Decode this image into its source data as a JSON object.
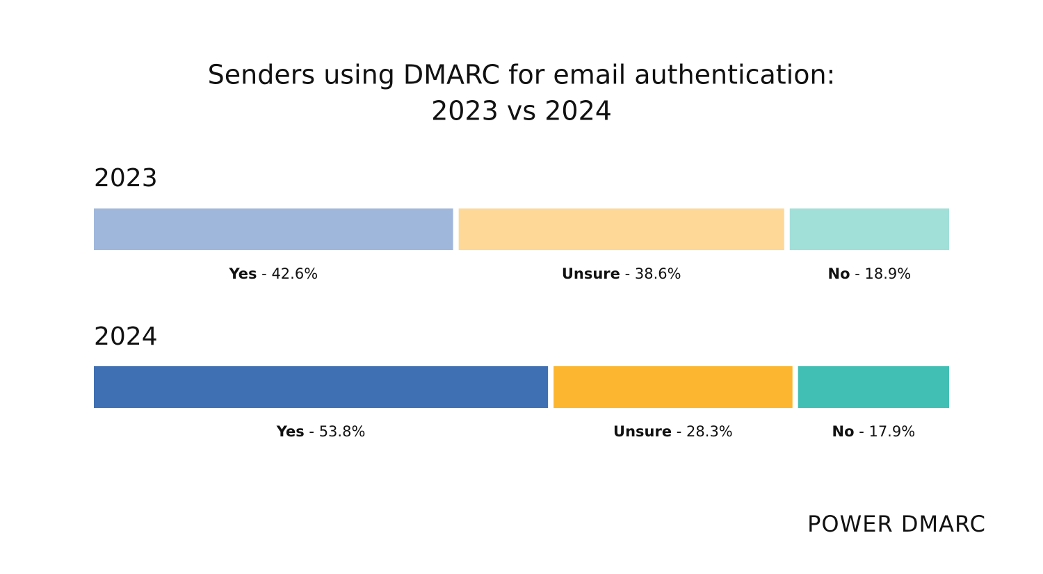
{
  "chart_data": {
    "type": "stacked_bar_horizontal",
    "title": [
      "Senders using DMARC for email authentication:",
      "2023 vs 2024"
    ],
    "categories": [
      "2023",
      "2024"
    ],
    "separator": " - ",
    "series": [
      {
        "name": "Yes",
        "colors": [
          "#a0b7dc",
          "#3f70b3"
        ],
        "values": [
          42.6,
          53.8
        ],
        "value_labels": [
          "42.6%",
          "53.8%"
        ]
      },
      {
        "name": "Unsure",
        "colors": [
          "#fdd897",
          "#fdb62f"
        ],
        "values": [
          38.6,
          28.3
        ],
        "value_labels": [
          "38.6%",
          "28.3%"
        ]
      },
      {
        "name": "No",
        "colors": [
          "#a1dfd9",
          "#42bfb4"
        ],
        "values": [
          18.9,
          17.9
        ],
        "value_labels": [
          "18.9%",
          "17.9%"
        ]
      }
    ],
    "brand": "POWER DMARC"
  }
}
